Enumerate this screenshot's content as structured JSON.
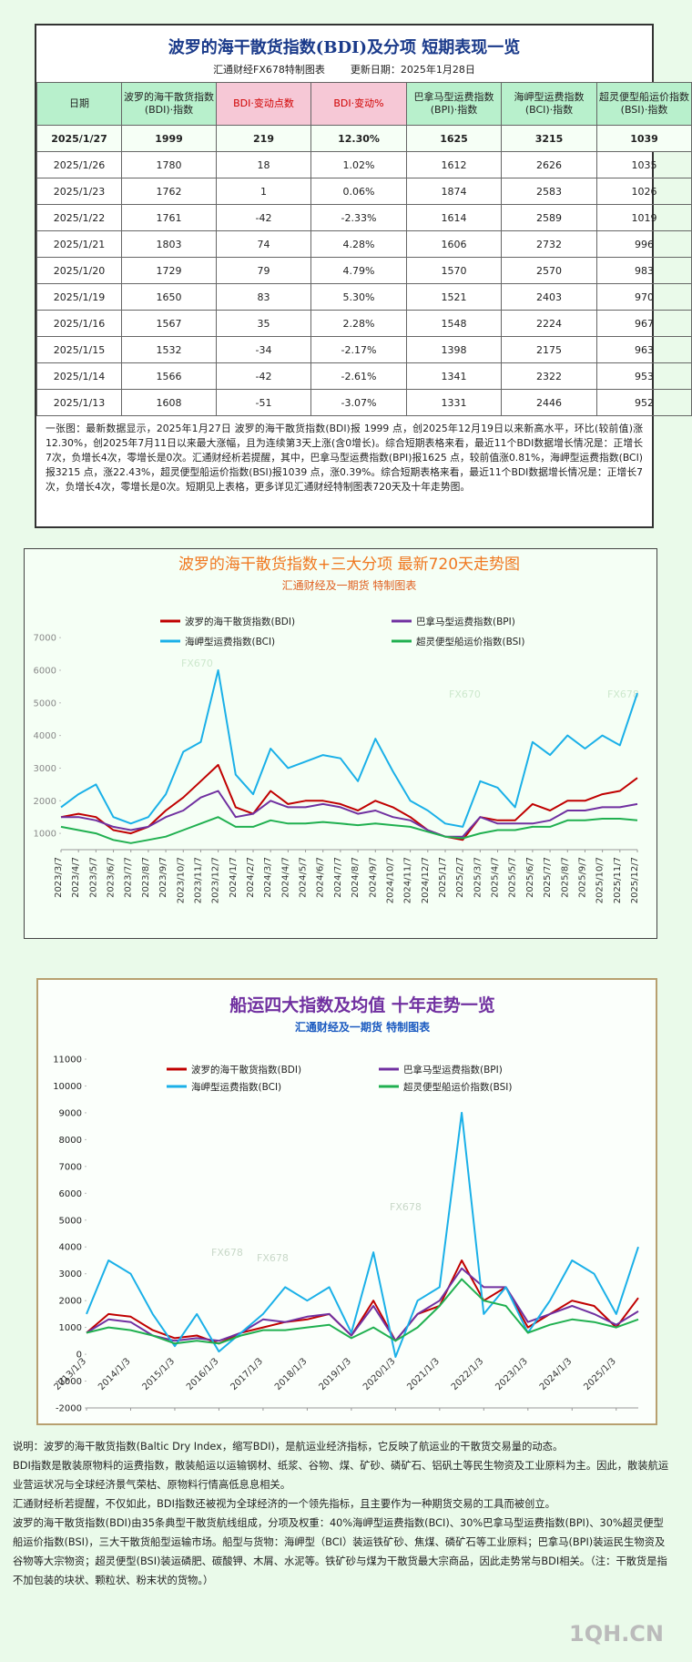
{
  "table": {
    "title": "波罗的海干散货指数(BDI)及分项  短期表现一览",
    "source": "汇通财经FX678特制图表",
    "update": "更新日期：2025年1月28日",
    "headers": [
      "日期",
      "波罗的海干散货指数(BDI)·指数",
      "BDI·变动点数",
      "BDI·变动%",
      "巴拿马型运费指数(BPI)·指数",
      "海岬型运费指数(BCI)·指数",
      "超灵便型船运价指数(BSI)·指数"
    ],
    "rows": [
      [
        "2025/1/27",
        "1999",
        "219",
        "12.30%",
        "1625",
        "3215",
        "1039"
      ],
      [
        "2025/1/26",
        "1780",
        "18",
        "1.02%",
        "1612",
        "2626",
        "1035"
      ],
      [
        "2025/1/23",
        "1762",
        "1",
        "0.06%",
        "1874",
        "2583",
        "1026"
      ],
      [
        "2025/1/22",
        "1761",
        "-42",
        "-2.33%",
        "1614",
        "2589",
        "1019"
      ],
      [
        "2025/1/21",
        "1803",
        "74",
        "4.28%",
        "1606",
        "2732",
        "996"
      ],
      [
        "2025/1/20",
        "1729",
        "79",
        "4.79%",
        "1570",
        "2570",
        "983"
      ],
      [
        "2025/1/19",
        "1650",
        "83",
        "5.30%",
        "1521",
        "2403",
        "970"
      ],
      [
        "2025/1/16",
        "1567",
        "35",
        "2.28%",
        "1548",
        "2224",
        "967"
      ],
      [
        "2025/1/15",
        "1532",
        "-34",
        "-2.17%",
        "1398",
        "2175",
        "963"
      ],
      [
        "2025/1/14",
        "1566",
        "-42",
        "-2.61%",
        "1341",
        "2322",
        "953"
      ],
      [
        "2025/1/13",
        "1608",
        "-51",
        "-3.07%",
        "1331",
        "2446",
        "952"
      ]
    ],
    "summary": "一张图：最新数据显示，2025年1月27日 波罗的海干散货指数(BDI)报 1999 点，创2025年12月19日以来新高水平，环比(较前值)涨12.30%，创2025年7月11日以来最大涨幅，且为连续第3天上涨(含0增长)。综合短期表格来看，最近11个BDI数据增长情况是：正增长7次，负增长4次，零增长是0次。汇通财经析若提醒，其中，巴拿马型运费指数(BPI)报1625 点，较前值涨0.81%，海岬型运费指数(BCI)报3215 点，涨22.43%，超灵便型船运价指数(BSI)报1039 点，涨0.39%。综合短期表格来看，最近11个BDI数据增长情况是：正增长7次，负增长4次，零增长是0次。短期见上表格，更多详见汇通财经特制图表720天及十年走势图。"
  },
  "chart_data": [
    {
      "type": "line",
      "title": "波罗的海干散货指数+三大分项  最新720天走势图",
      "subtitle": "汇通财经及一期货 特制图表",
      "categories": [
        "2023/3/7",
        "2023/4/7",
        "2023/5/7",
        "2023/6/7",
        "2023/7/7",
        "2023/8/7",
        "2023/9/7",
        "2023/10/7",
        "2023/11/7",
        "2023/12/7",
        "2024/1/7",
        "2024/2/7",
        "2024/3/7",
        "2024/4/7",
        "2024/5/7",
        "2024/6/7",
        "2024/7/7",
        "2024/8/7",
        "2024/9/7",
        "2024/10/7",
        "2024/11/7",
        "2024/12/7",
        "2025/1/7",
        "2025/2/7",
        "2025/3/7",
        "2025/4/7",
        "2025/5/7",
        "2025/6/7",
        "2025/7/7",
        "2025/8/7",
        "2025/9/7",
        "2025/10/7",
        "2025/11/7",
        "2025/12/7"
      ],
      "ylim": [
        500,
        7200
      ],
      "yticks": [
        1000,
        2000,
        3000,
        4000,
        5000,
        6000,
        7000
      ],
      "watermarks": [
        "FX670",
        "FX670",
        "FX678"
      ],
      "series": [
        {
          "name": "波罗的海干散货指数(BDI)",
          "color": "#c00000",
          "values": [
            1500,
            1600,
            1500,
            1100,
            1000,
            1200,
            1700,
            2100,
            2600,
            3100,
            1800,
            1600,
            2300,
            1900,
            2000,
            2000,
            1900,
            1700,
            2000,
            1800,
            1500,
            1100,
            900,
            800,
            1500,
            1400,
            1400,
            1900,
            1700,
            2000,
            2000,
            2200,
            2300,
            2700
          ]
        },
        {
          "name": "巴拿马型运费指数(BPI)",
          "color": "#7030a0",
          "values": [
            1500,
            1500,
            1400,
            1200,
            1100,
            1200,
            1500,
            1700,
            2100,
            2300,
            1500,
            1600,
            2000,
            1800,
            1800,
            1900,
            1800,
            1600,
            1700,
            1500,
            1400,
            1100,
            900,
            900,
            1500,
            1300,
            1300,
            1300,
            1400,
            1700,
            1700,
            1800,
            1800,
            1900
          ]
        },
        {
          "name": "海岬型运费指数(BCI)",
          "color": "#1ab0e8",
          "values": [
            1800,
            2200,
            2500,
            1500,
            1300,
            1500,
            2200,
            3500,
            3800,
            6000,
            2800,
            2200,
            3600,
            3000,
            3200,
            3400,
            3300,
            2600,
            3900,
            2900,
            2000,
            1700,
            1300,
            1200,
            2600,
            2400,
            1800,
            3800,
            3400,
            4000,
            3600,
            4000,
            3700,
            5300
          ]
        },
        {
          "name": "超灵便型船运价指数(BSI)",
          "color": "#20b050",
          "values": [
            1200,
            1100,
            1000,
            800,
            700,
            800,
            900,
            1100,
            1300,
            1500,
            1200,
            1200,
            1400,
            1300,
            1300,
            1350,
            1300,
            1250,
            1300,
            1250,
            1200,
            1050,
            900,
            850,
            1000,
            1100,
            1100,
            1200,
            1200,
            1400,
            1400,
            1450,
            1450,
            1400
          ]
        }
      ]
    },
    {
      "type": "line",
      "title": "船运四大指数及均值 十年走势一览",
      "subtitle": "汇通财经及一期货 特制图表",
      "categories": [
        "2013/1/3",
        null,
        "2014/1/3",
        null,
        "2015/1/3",
        null,
        "2016/1/3",
        null,
        "2017/1/3",
        null,
        "2018/1/3",
        null,
        "2019/1/3",
        null,
        "2020/1/3",
        null,
        "2021/1/3",
        null,
        "2022/1/3",
        null,
        "2023/1/3",
        null,
        "2024/1/3",
        null,
        "2025/1/3",
        null
      ],
      "ylim": [
        -2000,
        11000
      ],
      "yticks": [
        -2000,
        -1000,
        0,
        1000,
        2000,
        3000,
        4000,
        5000,
        6000,
        7000,
        8000,
        9000,
        10000,
        11000
      ],
      "watermarks": [
        "FX678",
        "FX678",
        "FX678"
      ],
      "series": [
        {
          "name": "波罗的海干散货指数(BDI)",
          "color": "#c00000",
          "values": [
            800,
            1500,
            1400,
            900,
            600,
            700,
            400,
            800,
            1000,
            1200,
            1300,
            1500,
            700,
            2000,
            500,
            1500,
            1800,
            3500,
            2000,
            2500,
            1000,
            1500,
            2000,
            1800,
            1000,
            2100
          ]
        },
        {
          "name": "巴拿马型运费指数(BPI)",
          "color": "#7030a0",
          "values": [
            800,
            1300,
            1200,
            700,
            500,
            600,
            500,
            800,
            1300,
            1200,
            1400,
            1500,
            700,
            1800,
            500,
            1500,
            2000,
            3200,
            2500,
            2500,
            1200,
            1500,
            1800,
            1500,
            1100,
            1600
          ]
        },
        {
          "name": "海岬型运费指数(BCI)",
          "color": "#1ab0e8",
          "values": [
            1500,
            3500,
            3000,
            1500,
            300,
            1500,
            100,
            800,
            1500,
            2500,
            2000,
            2500,
            800,
            3800,
            -100,
            2000,
            2500,
            9000,
            1500,
            2500,
            800,
            2000,
            3500,
            3000,
            1500,
            4000
          ]
        },
        {
          "name": "超灵便型船运价指数(BSI)",
          "color": "#20b050",
          "values": [
            800,
            1000,
            900,
            700,
            400,
            500,
            400,
            700,
            900,
            900,
            1000,
            1100,
            600,
            1000,
            500,
            1000,
            1800,
            2800,
            2000,
            1800,
            800,
            1100,
            1300,
            1200,
            1000,
            1300
          ]
        }
      ]
    }
  ],
  "notes": [
    "说明：波罗的海干散货指数(Baltic Dry Index，缩写BDI)，是航运业经济指标，它反映了航运业的干散货交易量的动态。",
    "BDI指数是散装原物料的运费指数，散装船运以运输钢材、纸浆、谷物、煤、矿砂、磷矿石、铝矾土等民生物资及工业原料为主。因此，散装航运业营运状况与全球经济景气荣枯、原物料行情高低息息相关。",
    "汇通财经析若提醒，不仅如此，BDI指数还被视为全球经济的一个领先指标，且主要作为一种期货交易的工具而被创立。",
    "波罗的海干散货指数(BDI)由35条典型干散货航线组成，分项及权重：40%海岬型运费指数(BCI)、30%巴拿马型运费指数(BPI)、30%超灵便型船运价指数(BSI)，三大干散货船型运输市场。船型与货物：海岬型（BCI）装运铁矿砂、焦煤、磷矿石等工业原料；巴拿马(BPI)装运民生物资及谷物等大宗物资；超灵便型(BSI)装运磷肥、碳酸钾、木屑、水泥等。铁矿砂与煤为干散货最大宗商品，因此走势常与BDI相关。（注：干散货是指不加包装的块状、颗粒状、粉末状的货物。）"
  ],
  "watermark": "1QH.CN"
}
